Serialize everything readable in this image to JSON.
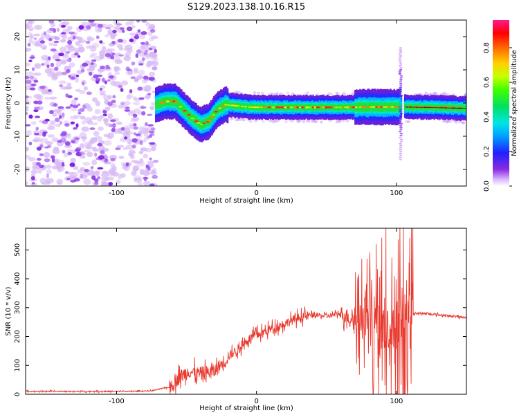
{
  "title": "S129.2023.138.10.16.R15",
  "colors": {
    "snr_line": "#e83a2f",
    "noise_purple": "#8b2be2",
    "axis": "#000000"
  },
  "colorbar": {
    "label": "Normalized spectral amplitude",
    "ticks": [
      "0.0",
      "0.2",
      "0.4",
      "0.6",
      "0.8"
    ],
    "colormap": "gist_rainbow_r-like (white/purple low → red/magenta high)"
  },
  "chart_data": [
    {
      "type": "heatmap",
      "xlabel": "Height of straight line (km)",
      "ylabel": "Frequency (Hz)",
      "xlim": [
        -165,
        150
      ],
      "ylim": [
        -25,
        25
      ],
      "xticks": [
        "-100",
        "0",
        "100"
      ],
      "xtick_values": [
        -100,
        0,
        100
      ],
      "yticks": [
        "20",
        "10",
        "0",
        "-10",
        "-20"
      ],
      "ytick_values": [
        20,
        10,
        0,
        -10,
        -20
      ],
      "colorbar_range": [
        0,
        1
      ],
      "description_points": {
        "noise_region_x": [
          -165,
          -72
        ],
        "ridge": {
          "x": [
            -72,
            -65,
            -58,
            -52,
            -46,
            -40,
            -34,
            -28,
            -22,
            -15,
            -5,
            5,
            20,
            40,
            60,
            80,
            95,
            103,
            110,
            130,
            150
          ],
          "y": [
            -0.5,
            0.5,
            0.5,
            -2,
            -4.5,
            -6.5,
            -5.5,
            -2,
            -0.5,
            -0.8,
            -1.2,
            -1.3,
            -1.3,
            -1.3,
            -1.3,
            -1.2,
            -1.2,
            -1.2,
            -1.2,
            -1.3,
            -1.6
          ]
        },
        "vertical_feature_x": 103
      }
    },
    {
      "type": "line",
      "xlabel": "Height of straight line (km)",
      "ylabel": "SNR (10 * v/v)",
      "xlim": [
        -165,
        150
      ],
      "ylim": [
        0,
        575
      ],
      "xticks": [
        "-100",
        "0",
        "100"
      ],
      "xtick_values": [
        -100,
        0,
        100
      ],
      "yticks": [
        "0",
        "100",
        "200",
        "300",
        "400",
        "500"
      ],
      "ytick_values": [
        0,
        100,
        200,
        300,
        400,
        500
      ],
      "series": [
        {
          "x": [
            -165,
            -150,
            -130,
            -110,
            -90,
            -75,
            -62,
            -55,
            -48,
            -42,
            -36,
            -30,
            -24,
            -18,
            -12,
            -6,
            0,
            10,
            20,
            30,
            40,
            50,
            60,
            65,
            70,
            75,
            80,
            85,
            90,
            95,
            100,
            105,
            110,
            112,
            120,
            130,
            140,
            150
          ],
          "y": [
            10,
            10,
            10,
            10,
            10,
            12,
            25,
            60,
            80,
            70,
            75,
            80,
            110,
            140,
            160,
            190,
            205,
            225,
            245,
            265,
            275,
            270,
            280,
            270,
            255,
            260,
            270,
            255,
            240,
            250,
            260,
            270,
            250,
            280,
            280,
            275,
            270,
            265
          ]
        }
      ]
    }
  ]
}
